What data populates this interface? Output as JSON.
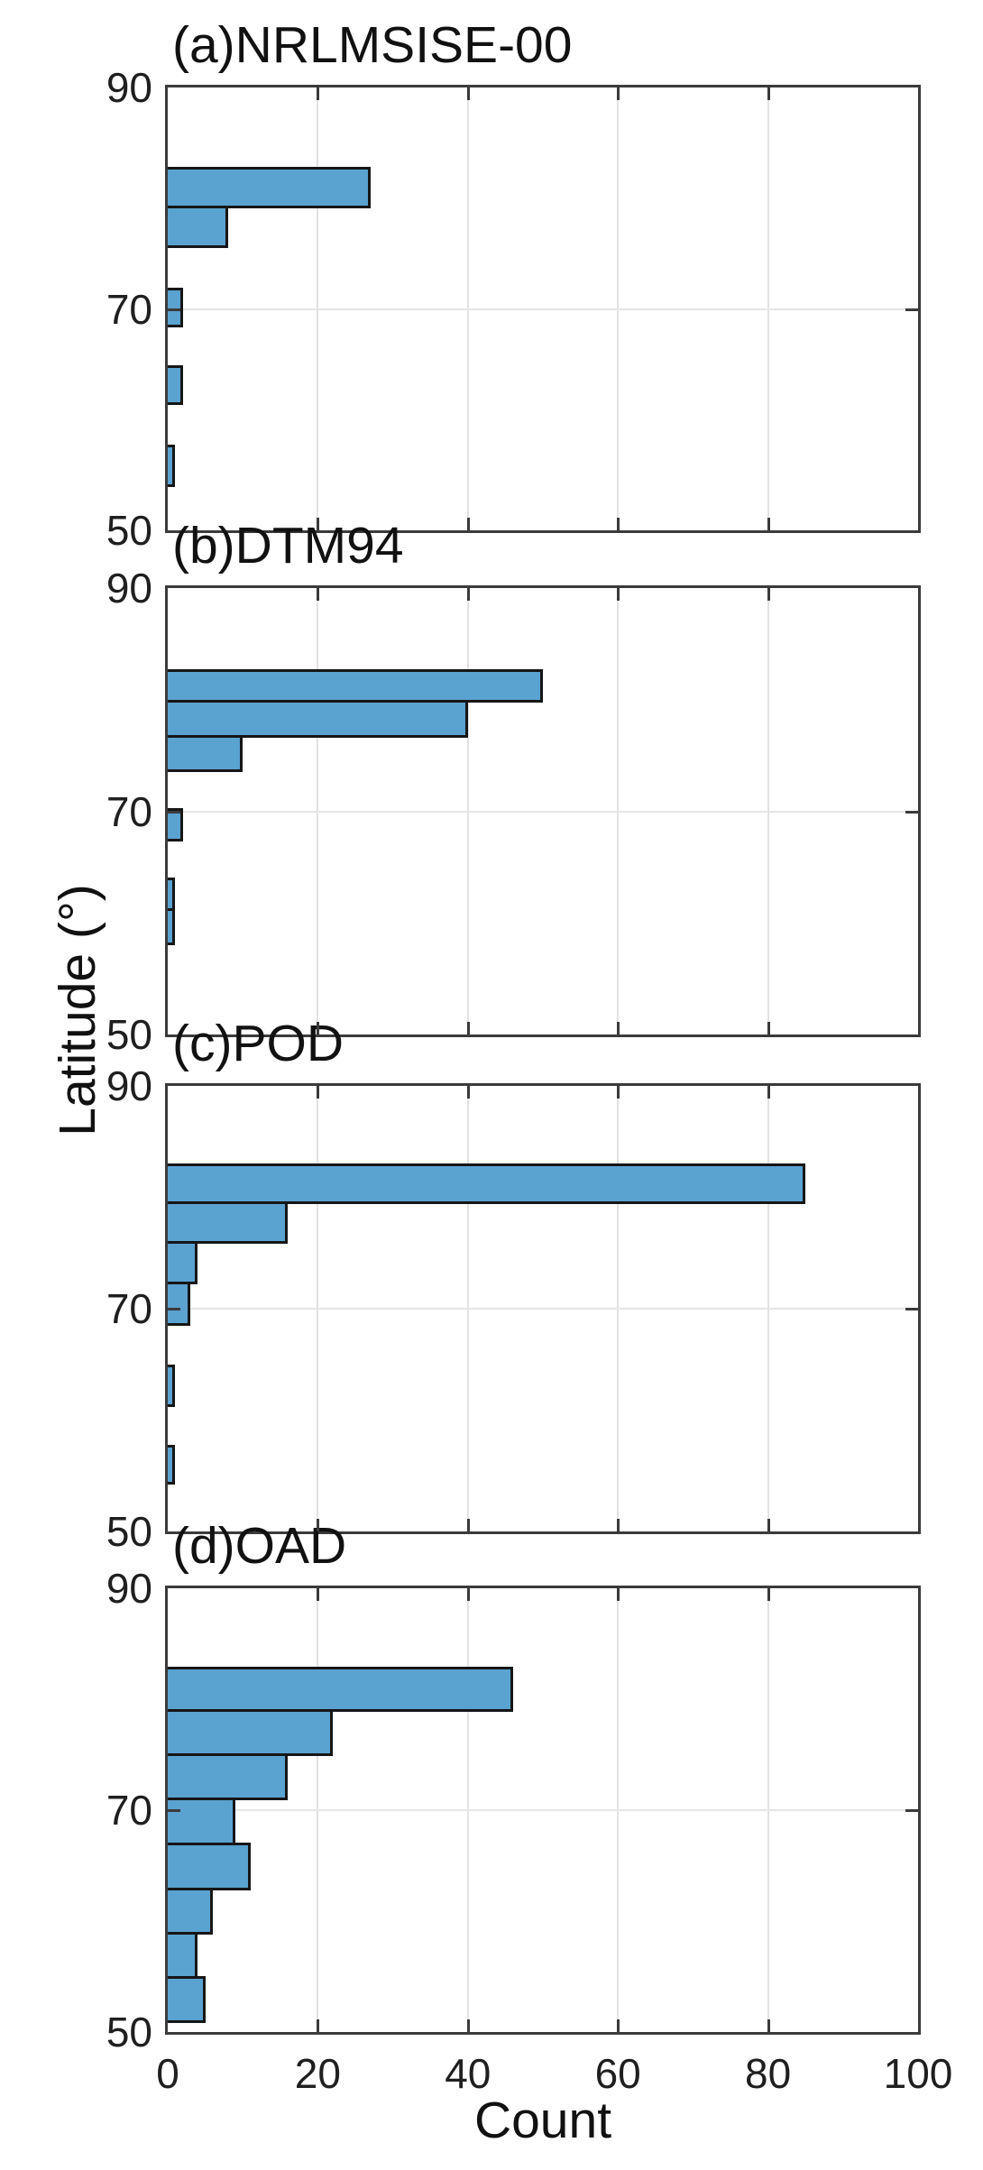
{
  "figure": {
    "xlabel": "Count",
    "ylabel": "Latitude (°)",
    "x_tick_labels": [
      "0",
      "20",
      "40",
      "60",
      "80",
      "100"
    ],
    "y_tick_labels": [
      "90",
      "70",
      "50"
    ]
  },
  "colors": {
    "bar_fill": "#5aa2d0",
    "bar_edge": "#161616",
    "axis": "#3b3b3b",
    "grid": "#e2e2e2",
    "text": "#1f1f1f"
  },
  "chart_data": [
    {
      "type": "bar",
      "orientation": "horizontal",
      "title": "(a)NRLMSISE-00",
      "xlabel": "Count",
      "ylabel": "Latitude (°)",
      "xlim": [
        0,
        100
      ],
      "ylim": [
        50,
        90
      ],
      "x_ticks": [
        0,
        20,
        40,
        60,
        80,
        100
      ],
      "y_ticks": [
        50,
        70,
        90
      ],
      "grid": true,
      "bars": [
        {
          "lat_min": 79.1,
          "lat_max": 82.8,
          "count": 27
        },
        {
          "lat_min": 75.5,
          "lat_max": 79.1,
          "count": 8
        },
        {
          "lat_min": 68.3,
          "lat_max": 71.9,
          "count": 2
        },
        {
          "lat_min": 61.3,
          "lat_max": 64.9,
          "count": 2
        },
        {
          "lat_min": 53.9,
          "lat_max": 57.7,
          "count": 1
        }
      ]
    },
    {
      "type": "bar",
      "orientation": "horizontal",
      "title": "(b)DTM94",
      "xlabel": "Count",
      "ylabel": "Latitude (°)",
      "xlim": [
        0,
        100
      ],
      "ylim": [
        50,
        90
      ],
      "x_ticks": [
        0,
        20,
        40,
        60,
        80,
        100
      ],
      "y_ticks": [
        50,
        70,
        90
      ],
      "grid": true,
      "bars": [
        {
          "lat_min": 79.7,
          "lat_max": 82.7,
          "count": 50
        },
        {
          "lat_min": 76.6,
          "lat_max": 79.7,
          "count": 40
        },
        {
          "lat_min": 73.5,
          "lat_max": 76.6,
          "count": 10
        },
        {
          "lat_min": 67.3,
          "lat_max": 70.3,
          "count": 2
        },
        {
          "lat_min": 61.1,
          "lat_max": 64.1,
          "count": 1
        },
        {
          "lat_min": 58.0,
          "lat_max": 61.1,
          "count": 1
        }
      ]
    },
    {
      "type": "bar",
      "orientation": "horizontal",
      "title": "(c)POD",
      "xlabel": "Count",
      "ylabel": "Latitude (°)",
      "xlim": [
        0,
        100
      ],
      "ylim": [
        50,
        90
      ],
      "x_ticks": [
        0,
        20,
        40,
        60,
        80,
        100
      ],
      "y_ticks": [
        50,
        70,
        90
      ],
      "grid": true,
      "bars": [
        {
          "lat_min": 79.4,
          "lat_max": 83.0,
          "count": 85
        },
        {
          "lat_min": 75.8,
          "lat_max": 79.4,
          "count": 16
        },
        {
          "lat_min": 72.2,
          "lat_max": 75.8,
          "count": 4
        },
        {
          "lat_min": 68.5,
          "lat_max": 72.2,
          "count": 3
        },
        {
          "lat_min": 61.2,
          "lat_max": 65.0,
          "count": 1
        },
        {
          "lat_min": 54.2,
          "lat_max": 57.8,
          "count": 1
        }
      ]
    },
    {
      "type": "bar",
      "orientation": "horizontal",
      "title": "(d)OAD",
      "xlabel": "Count",
      "ylabel": "Latitude (°)",
      "xlim": [
        0,
        100
      ],
      "ylim": [
        50,
        90
      ],
      "x_ticks": [
        0,
        20,
        40,
        60,
        80,
        100
      ],
      "y_ticks": [
        50,
        70,
        90
      ],
      "grid": true,
      "bars": [
        {
          "lat_min": 78.9,
          "lat_max": 82.9,
          "count": 46
        },
        {
          "lat_min": 74.9,
          "lat_max": 78.9,
          "count": 22
        },
        {
          "lat_min": 70.9,
          "lat_max": 74.9,
          "count": 16
        },
        {
          "lat_min": 66.8,
          "lat_max": 70.9,
          "count": 9
        },
        {
          "lat_min": 62.8,
          "lat_max": 66.8,
          "count": 11
        },
        {
          "lat_min": 58.8,
          "lat_max": 62.8,
          "count": 6
        },
        {
          "lat_min": 54.8,
          "lat_max": 58.8,
          "count": 4
        },
        {
          "lat_min": 50.8,
          "lat_max": 54.8,
          "count": 5
        }
      ]
    }
  ]
}
